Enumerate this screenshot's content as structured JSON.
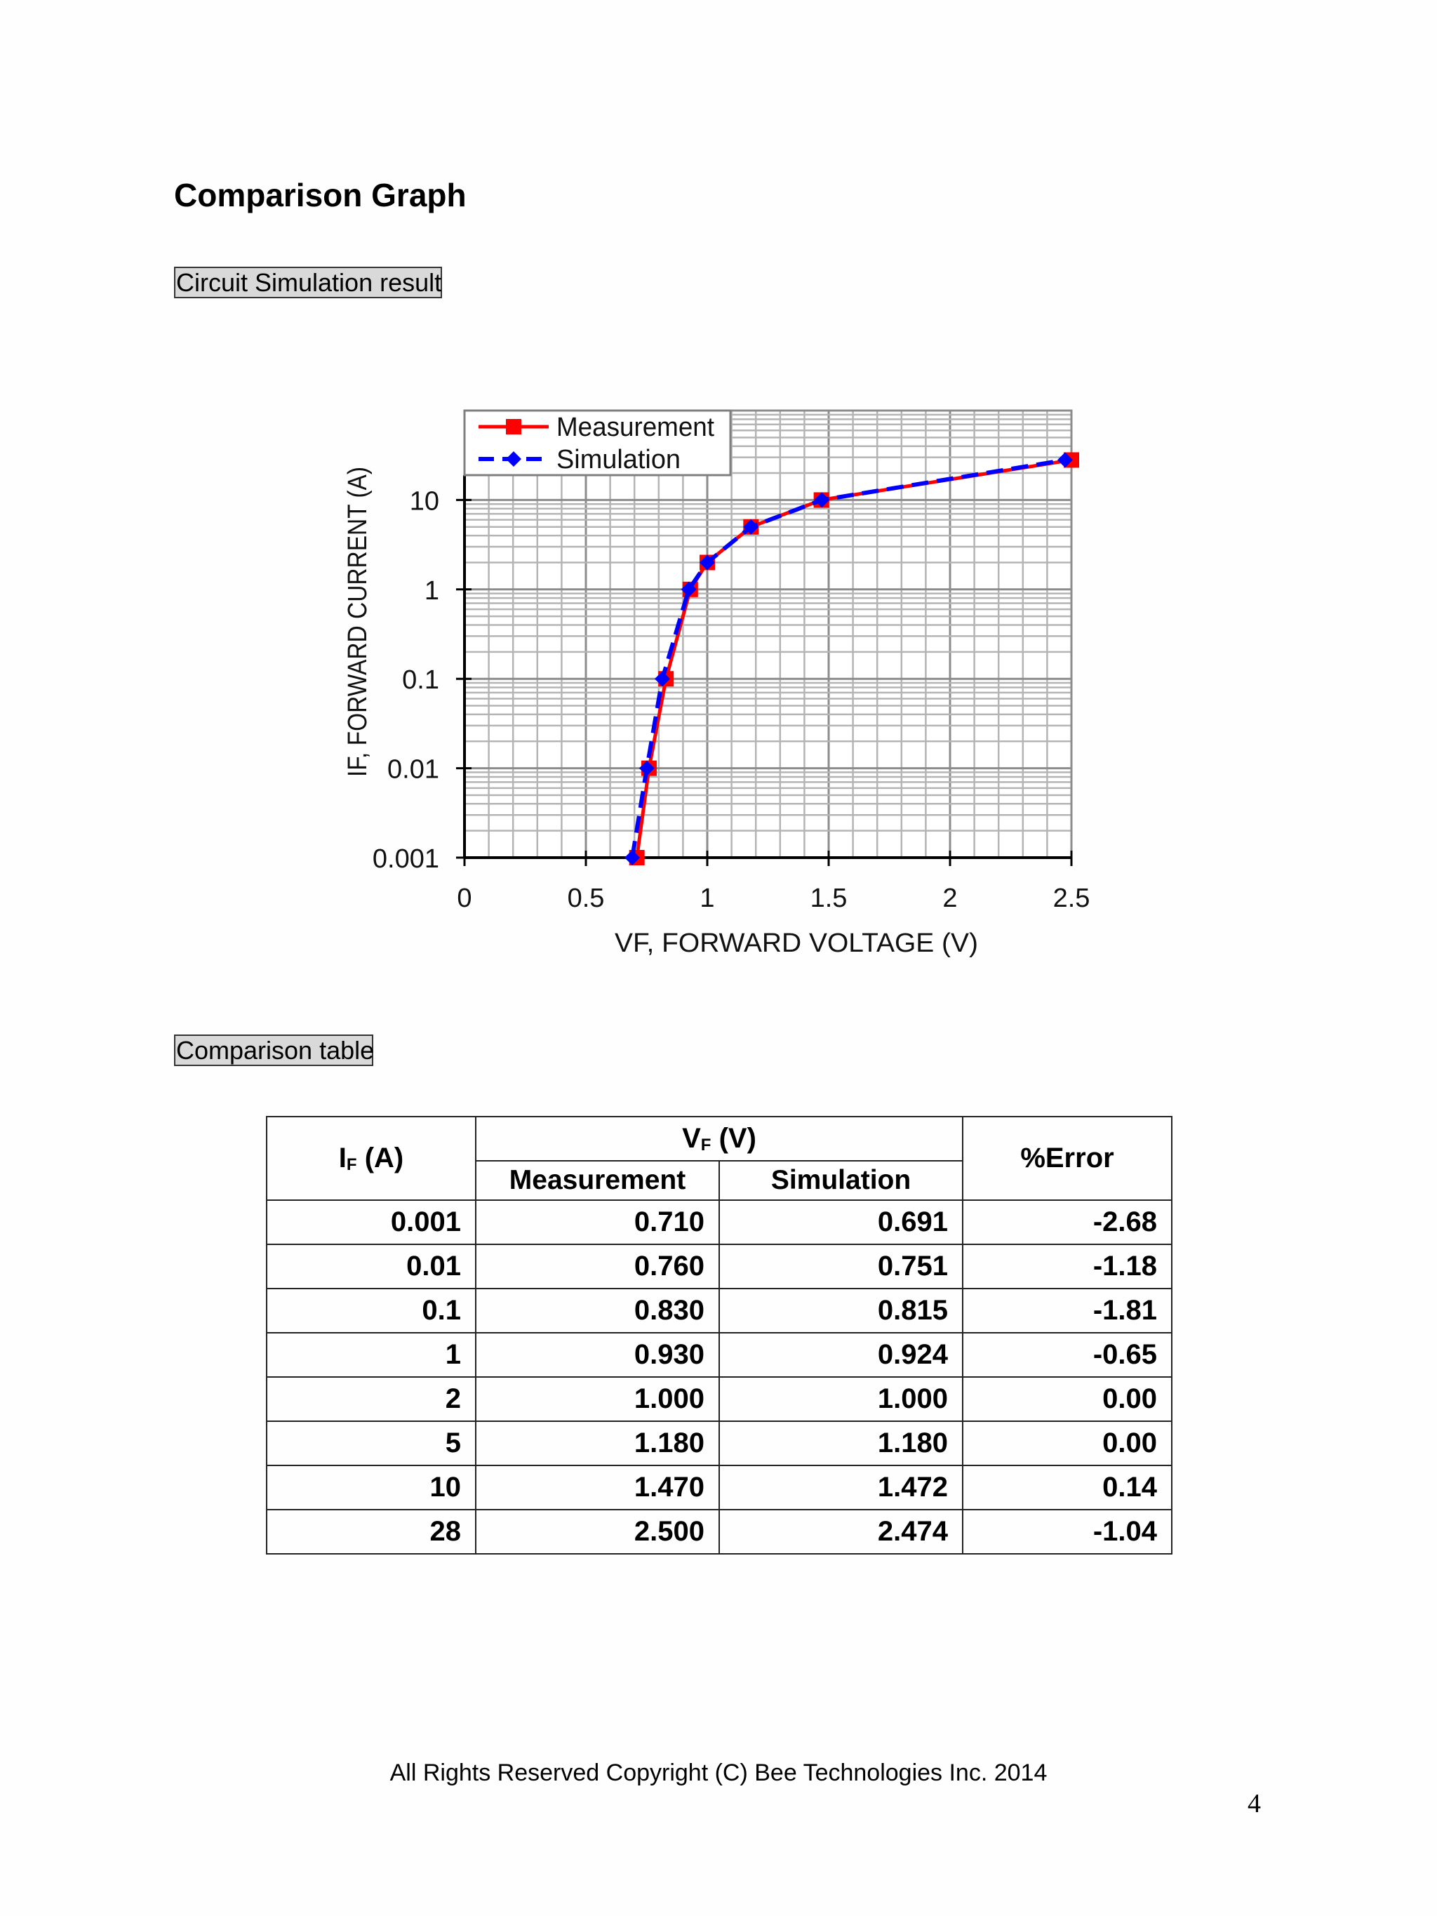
{
  "page": {
    "heading": "Comparison Graph",
    "section_labels": {
      "graph": "Circuit Simulation result",
      "table": "Comparison table"
    },
    "footer": "All Rights Reserved Copyright (C) Bee Technologies Inc. 2014",
    "page_number": "4"
  },
  "colors": {
    "measurement": "#ff0000",
    "simulation": "#0000ff",
    "grid_minor": "#b4b4b4",
    "grid_major": "#8c8c8c",
    "label_bg": "#d9d9d9"
  },
  "table": {
    "headers": {
      "if_main": "I",
      "if_sub": "F",
      "if_unit": " (A)",
      "vf_main": "V",
      "vf_sub": "F",
      "vf_unit": " (V)",
      "measurement": "Measurement",
      "simulation": "Simulation",
      "error": "%Error"
    },
    "rows": [
      {
        "if": "0.001",
        "meas": "0.710",
        "sim": "0.691",
        "err": "-2.68"
      },
      {
        "if": "0.01",
        "meas": "0.760",
        "sim": "0.751",
        "err": "-1.18"
      },
      {
        "if": "0.1",
        "meas": "0.830",
        "sim": "0.815",
        "err": "-1.81"
      },
      {
        "if": "1",
        "meas": "0.930",
        "sim": "0.924",
        "err": "-0.65"
      },
      {
        "if": "2",
        "meas": "1.000",
        "sim": "1.000",
        "err": "0.00"
      },
      {
        "if": "5",
        "meas": "1.180",
        "sim": "1.180",
        "err": "0.00"
      },
      {
        "if": "10",
        "meas": "1.470",
        "sim": "1.472",
        "err": "0.14"
      },
      {
        "if": "28",
        "meas": "2.500",
        "sim": "2.474",
        "err": "-1.04"
      }
    ]
  },
  "chart_data": {
    "type": "line",
    "title": "",
    "xlabel": "VF, FORWARD VOLTAGE  (V)",
    "ylabel": "IF, FORWARD CURRENT  (A)",
    "xlim": [
      0,
      2.5
    ],
    "ylim": [
      0.001,
      100
    ],
    "yscale": "log",
    "grid": true,
    "legend_position": "upper-left",
    "x_ticks": [
      0,
      0.5,
      1,
      1.5,
      2,
      2.5
    ],
    "x_tick_labels": [
      "0",
      "0.5",
      "1",
      "1.5",
      "2",
      "2.5"
    ],
    "y_ticks": [
      0.001,
      0.01,
      0.1,
      1,
      10
    ],
    "y_tick_labels": [
      "0.001",
      "0.01",
      "0.1",
      "1",
      "10"
    ],
    "series": [
      {
        "name": "Measurement",
        "style": "solid",
        "marker": "square",
        "color": "#ff0000",
        "x": [
          0.71,
          0.76,
          0.83,
          0.93,
          1.0,
          1.18,
          1.47,
          2.5
        ],
        "y": [
          0.001,
          0.01,
          0.1,
          1,
          2,
          5,
          10,
          28
        ]
      },
      {
        "name": "Simulation",
        "style": "dashed",
        "marker": "diamond",
        "color": "#0000ff",
        "x": [
          0.691,
          0.751,
          0.815,
          0.924,
          1.0,
          1.18,
          1.472,
          2.474
        ],
        "y": [
          0.001,
          0.01,
          0.1,
          1,
          2,
          5,
          10,
          28
        ]
      }
    ]
  }
}
